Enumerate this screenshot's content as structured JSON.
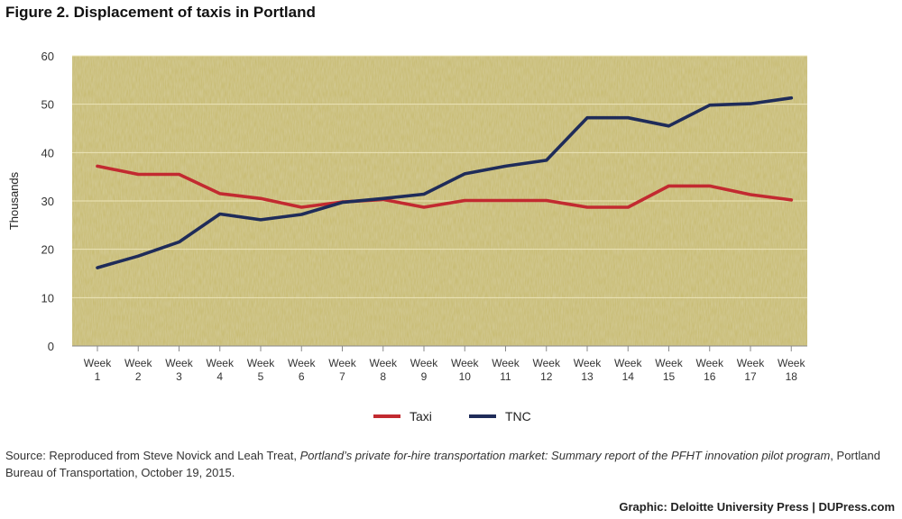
{
  "figure": {
    "title": "Figure 2. Displacement of taxis in Portland"
  },
  "source": {
    "prefix": "Source: Reproduced from Steve Novick and Leah Treat, ",
    "work_title": "Portland’s private for-hire transportation market: Summary report of the PFHT innovation pilot program",
    "suffix": ", Portland Bureau of Transportation, October 19, 2015."
  },
  "credit": {
    "text": "Graphic: Deloitte University Press  |  DUPress.com"
  },
  "colors": {
    "plot_background": "#c6b96b",
    "grid": "#ece4b8",
    "taxi": "#c22a30",
    "tnc": "#1f2c59"
  },
  "chart_data": {
    "type": "line",
    "title": "",
    "ylabel": "Thousands",
    "xlabel": "",
    "ylim": [
      0,
      60
    ],
    "yticks": [
      0,
      10,
      20,
      30,
      40,
      50,
      60
    ],
    "grid": true,
    "legend_position": "bottom-center",
    "categories": [
      [
        "Week",
        "1"
      ],
      [
        "Week",
        "2"
      ],
      [
        "Week",
        "3"
      ],
      [
        "Week",
        "4"
      ],
      [
        "Week",
        "5"
      ],
      [
        "Week",
        "6"
      ],
      [
        "Week",
        "7"
      ],
      [
        "Week",
        "8"
      ],
      [
        "Week",
        "9"
      ],
      [
        "Week",
        "10"
      ],
      [
        "Week",
        "11"
      ],
      [
        "Week",
        "12"
      ],
      [
        "Week",
        "13"
      ],
      [
        "Week",
        "14"
      ],
      [
        "Week",
        "15"
      ],
      [
        "Week",
        "16"
      ],
      [
        "Week",
        "17"
      ],
      [
        "Week",
        "18"
      ]
    ],
    "series": [
      {
        "name": "Taxi",
        "color": "#c22a30",
        "values": [
          37.2,
          35.5,
          35.5,
          31.5,
          30.5,
          28.7,
          29.8,
          30.3,
          28.7,
          30.1,
          30.1,
          30.1,
          28.7,
          28.7,
          33.1,
          33.1,
          31.3,
          30.2
        ]
      },
      {
        "name": "TNC",
        "color": "#1f2c59",
        "values": [
          16.2,
          18.6,
          21.5,
          27.3,
          26.1,
          27.2,
          29.7,
          30.5,
          31.4,
          35.6,
          37.2,
          38.4,
          47.2,
          47.2,
          45.5,
          49.8,
          50.1,
          51.3
        ]
      }
    ]
  }
}
